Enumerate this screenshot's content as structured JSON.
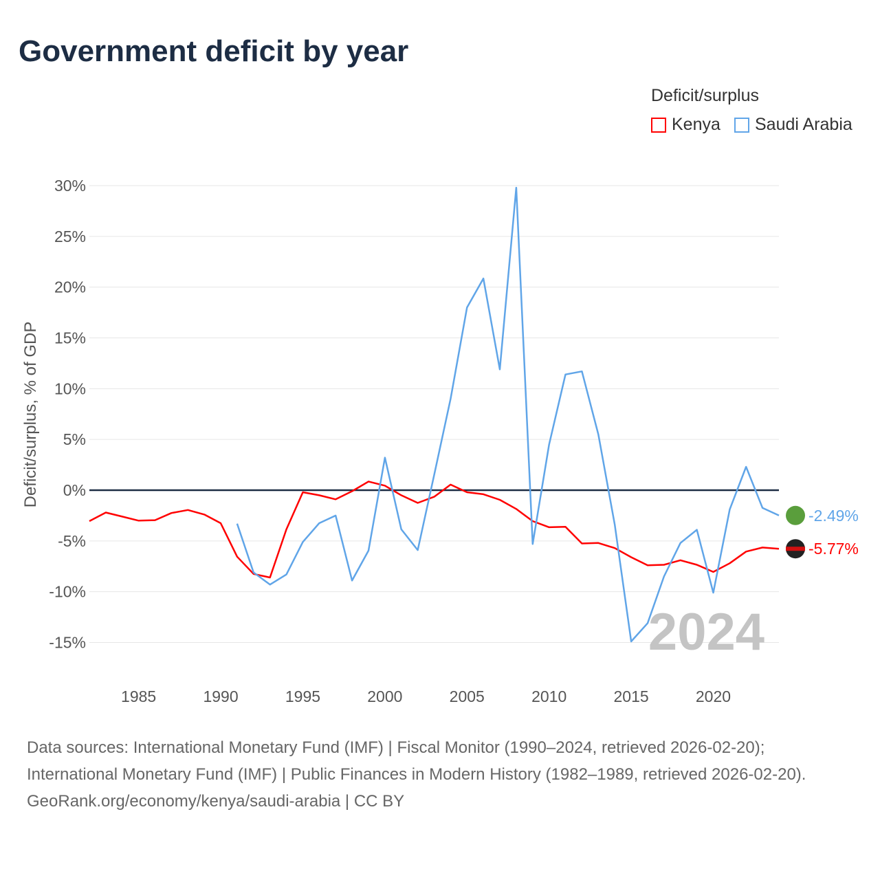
{
  "title": "Government deficit by year",
  "legend": {
    "title": "Deficit/surplus",
    "items": [
      {
        "label": "Kenya",
        "color": "#ff0000"
      },
      {
        "label": "Saudi Arabia",
        "color": "#60a5e8"
      }
    ]
  },
  "chart_data": {
    "type": "line",
    "title": "Government deficit by year",
    "ylabel": "Deficit/surplus, % of GDP",
    "xlabel": "",
    "ylim": [
      -15,
      30
    ],
    "xlim": [
      1982,
      2024
    ],
    "yticks": [
      30,
      25,
      20,
      15,
      10,
      5,
      0,
      -5,
      -10,
      -15
    ],
    "ytick_labels": [
      "30%",
      "25%",
      "20%",
      "15%",
      "10%",
      "5%",
      "0%",
      "-5%",
      "-10%",
      "-15%"
    ],
    "xticks": [
      1985,
      1990,
      1995,
      2000,
      2005,
      2010,
      2015,
      2020
    ],
    "xtick_labels": [
      "1985",
      "1990",
      "1995",
      "2000",
      "2005",
      "2010",
      "2015",
      "2020"
    ],
    "watermark_year": "2024",
    "series": [
      {
        "name": "Kenya",
        "color": "#ff0000",
        "start": 1982,
        "end_label": "-5.77%",
        "values": [
          -3.05,
          -2.2,
          -2.6,
          -3.0,
          -2.95,
          -2.25,
          -1.95,
          -2.4,
          -3.25,
          -6.55,
          -8.25,
          -8.6,
          -3.85,
          -0.2,
          -0.5,
          -0.9,
          -0.1,
          0.85,
          0.45,
          -0.5,
          -1.25,
          -0.65,
          0.55,
          -0.2,
          -0.4,
          -0.95,
          -1.85,
          -3.05,
          -3.65,
          -3.6,
          -5.25,
          -5.2,
          -5.7,
          -6.6,
          -7.4,
          -7.35,
          -6.9,
          -7.35,
          -8.05,
          -7.2,
          -6.05,
          -5.65,
          -5.77
        ]
      },
      {
        "name": "Saudi Arabia",
        "color": "#60a5e8",
        "start": 1991,
        "end_label": "-2.49%",
        "values": [
          -3.3,
          -8.1,
          -9.3,
          -8.3,
          -5.1,
          -3.25,
          -2.5,
          -8.9,
          -5.95,
          3.2,
          -3.85,
          -5.9,
          1.5,
          9.0,
          18.0,
          20.85,
          11.9,
          29.8,
          -5.3,
          4.5,
          11.4,
          11.7,
          5.5,
          -3.4,
          -14.9,
          -13.1,
          -8.5,
          -5.2,
          -3.9,
          -10.1,
          -1.9,
          2.3,
          -1.75,
          -2.49
        ]
      }
    ]
  },
  "footer": {
    "sources": "Data sources: International Monetary Fund (IMF) | Fiscal Monitor (1990–2024, retrieved 2026-02-20); International Monetary Fund (IMF) | Public Finances in Modern History (1982–1989, retrieved 2026-02-20).",
    "credit": "GeoRank.org/economy/kenya/saudi-arabia | CC BY"
  }
}
